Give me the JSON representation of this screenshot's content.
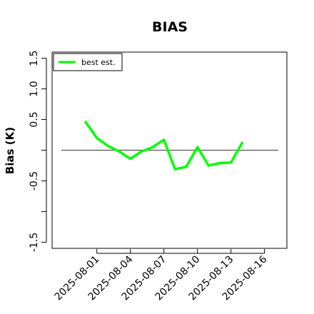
{
  "chart_data": {
    "type": "line",
    "title": "BIAS",
    "xlabel": "",
    "ylabel": "Bias (K)",
    "ylim": [
      -1.6,
      1.6
    ],
    "yticks": [
      -1.5,
      -1.0,
      -0.5,
      0.0,
      0.5,
      1.0,
      1.5
    ],
    "ytick_labels": [
      "-1.5",
      "",
      "-0.5",
      "",
      "0.5",
      "1.0",
      "1.5"
    ],
    "xlim": [
      "2025-07-28",
      "2025-08-18"
    ],
    "xticks": [
      "2025-08-01",
      "2025-08-04",
      "2025-08-07",
      "2025-08-10",
      "2025-08-13",
      "2025-08-16"
    ],
    "reference_line": 0.0,
    "legend": {
      "position": "top-left",
      "entries": [
        "best est."
      ]
    },
    "grid": false,
    "colors": {
      "series": "#00ff00",
      "reference": "#555555"
    },
    "series": [
      {
        "name": "best est.",
        "x": [
          "2025-07-31",
          "2025-08-01",
          "2025-08-02",
          "2025-08-03",
          "2025-08-04",
          "2025-08-05",
          "2025-08-06",
          "2025-08-07",
          "2025-08-08",
          "2025-08-09",
          "2025-08-10",
          "2025-08-11",
          "2025-08-12",
          "2025-08-13",
          "2025-08-14"
        ],
        "values": [
          0.46,
          0.2,
          0.07,
          -0.02,
          -0.14,
          -0.02,
          0.05,
          0.17,
          -0.31,
          -0.27,
          0.05,
          -0.25,
          -0.21,
          -0.2,
          0.12
        ]
      }
    ]
  }
}
